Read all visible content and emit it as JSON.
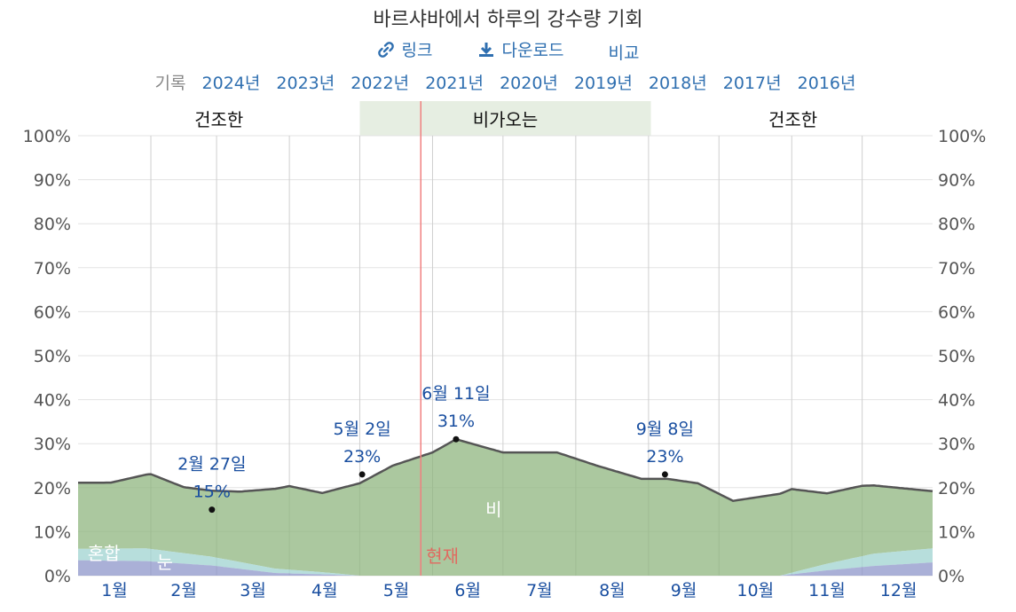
{
  "page": {
    "title": "바르샤바에서 하루의 강수량 기회",
    "links": [
      {
        "label": "링크",
        "icon": "link-icon"
      },
      {
        "label": "다운로드",
        "icon": "download-icon"
      },
      {
        "label": "비교",
        "icon": ""
      }
    ],
    "history_label": "기록",
    "years": [
      "2024년",
      "2023년",
      "2022년",
      "2021년",
      "2020년",
      "2019년",
      "2018년",
      "2017년",
      "2016년"
    ]
  },
  "chart_data": {
    "type": "area",
    "season_bands": [
      {
        "label": "건조한",
        "start_day": 1,
        "end_day": 120
      },
      {
        "label": "비가오는",
        "start_day": 121,
        "end_day": 244
      },
      {
        "label": "건조한",
        "start_day": 245,
        "end_day": 365
      }
    ],
    "months": [
      "1월",
      "2월",
      "3월",
      "4월",
      "5월",
      "6월",
      "7월",
      "8월",
      "9월",
      "10월",
      "11월",
      "12월"
    ],
    "y_ticks": [
      "0%",
      "10%",
      "20%",
      "30%",
      "40%",
      "50%",
      "60%",
      "70%",
      "80%",
      "90%",
      "100%"
    ],
    "ylim": [
      0,
      100
    ],
    "current_day": 147,
    "current_label": "현재",
    "series": [
      {
        "name": "비",
        "color": "#8fb57f",
        "x": [
          1,
          15,
          32,
          46,
          58,
          70,
          91,
          105,
          121,
          135,
          152,
          162,
          182,
          205,
          222,
          241,
          252,
          265,
          280,
          305,
          320,
          335,
          365
        ],
        "y": [
          15,
          15,
          17,
          15,
          15,
          16,
          19,
          18,
          21,
          25,
          28,
          31,
          28,
          28,
          25,
          22,
          22,
          21,
          17,
          19,
          16,
          16,
          13
        ]
      },
      {
        "name": "혼합",
        "color": "#9fd3d0",
        "x": [
          1,
          30,
          58,
          85,
          105,
          121,
          300,
          320,
          340,
          365
        ],
        "y": [
          2.6,
          2.9,
          2.0,
          1.0,
          0.5,
          0,
          0,
          1.5,
          2.8,
          3.2
        ]
      },
      {
        "name": "눈",
        "color": "#8d96c9",
        "x": [
          1,
          30,
          58,
          85,
          110,
          121,
          300,
          320,
          340,
          365
        ],
        "y": [
          3.5,
          3.3,
          2.3,
          0.6,
          0.2,
          0,
          0,
          1.2,
          2.2,
          3.0
        ]
      }
    ],
    "total": {
      "x": [
        1,
        15,
        32,
        46,
        58,
        70,
        91,
        105,
        121,
        135,
        152,
        162,
        182,
        205,
        222,
        241,
        252,
        265,
        280,
        305,
        320,
        335,
        365
      ],
      "y": [
        19,
        17,
        18,
        16,
        15,
        16,
        19,
        19,
        23,
        27,
        28,
        31,
        28,
        28,
        25,
        23,
        23,
        21,
        17,
        19,
        20,
        20,
        19
      ]
    },
    "annotations": [
      {
        "date": "2월 27일",
        "value": "15%",
        "day": 58,
        "y": 15
      },
      {
        "date": "5월 2일",
        "value": "23%",
        "day": 122,
        "y": 23
      },
      {
        "date": "6월 11일",
        "value": "31%",
        "day": 162,
        "y": 31
      },
      {
        "date": "9월 8일",
        "value": "23%",
        "day": 251,
        "y": 23
      }
    ],
    "area_labels": [
      {
        "text": "혼합",
        "day": 12,
        "y": 5
      },
      {
        "text": "눈",
        "day": 38,
        "y": 3
      },
      {
        "text": "비",
        "day": 178,
        "y": 15
      }
    ]
  }
}
